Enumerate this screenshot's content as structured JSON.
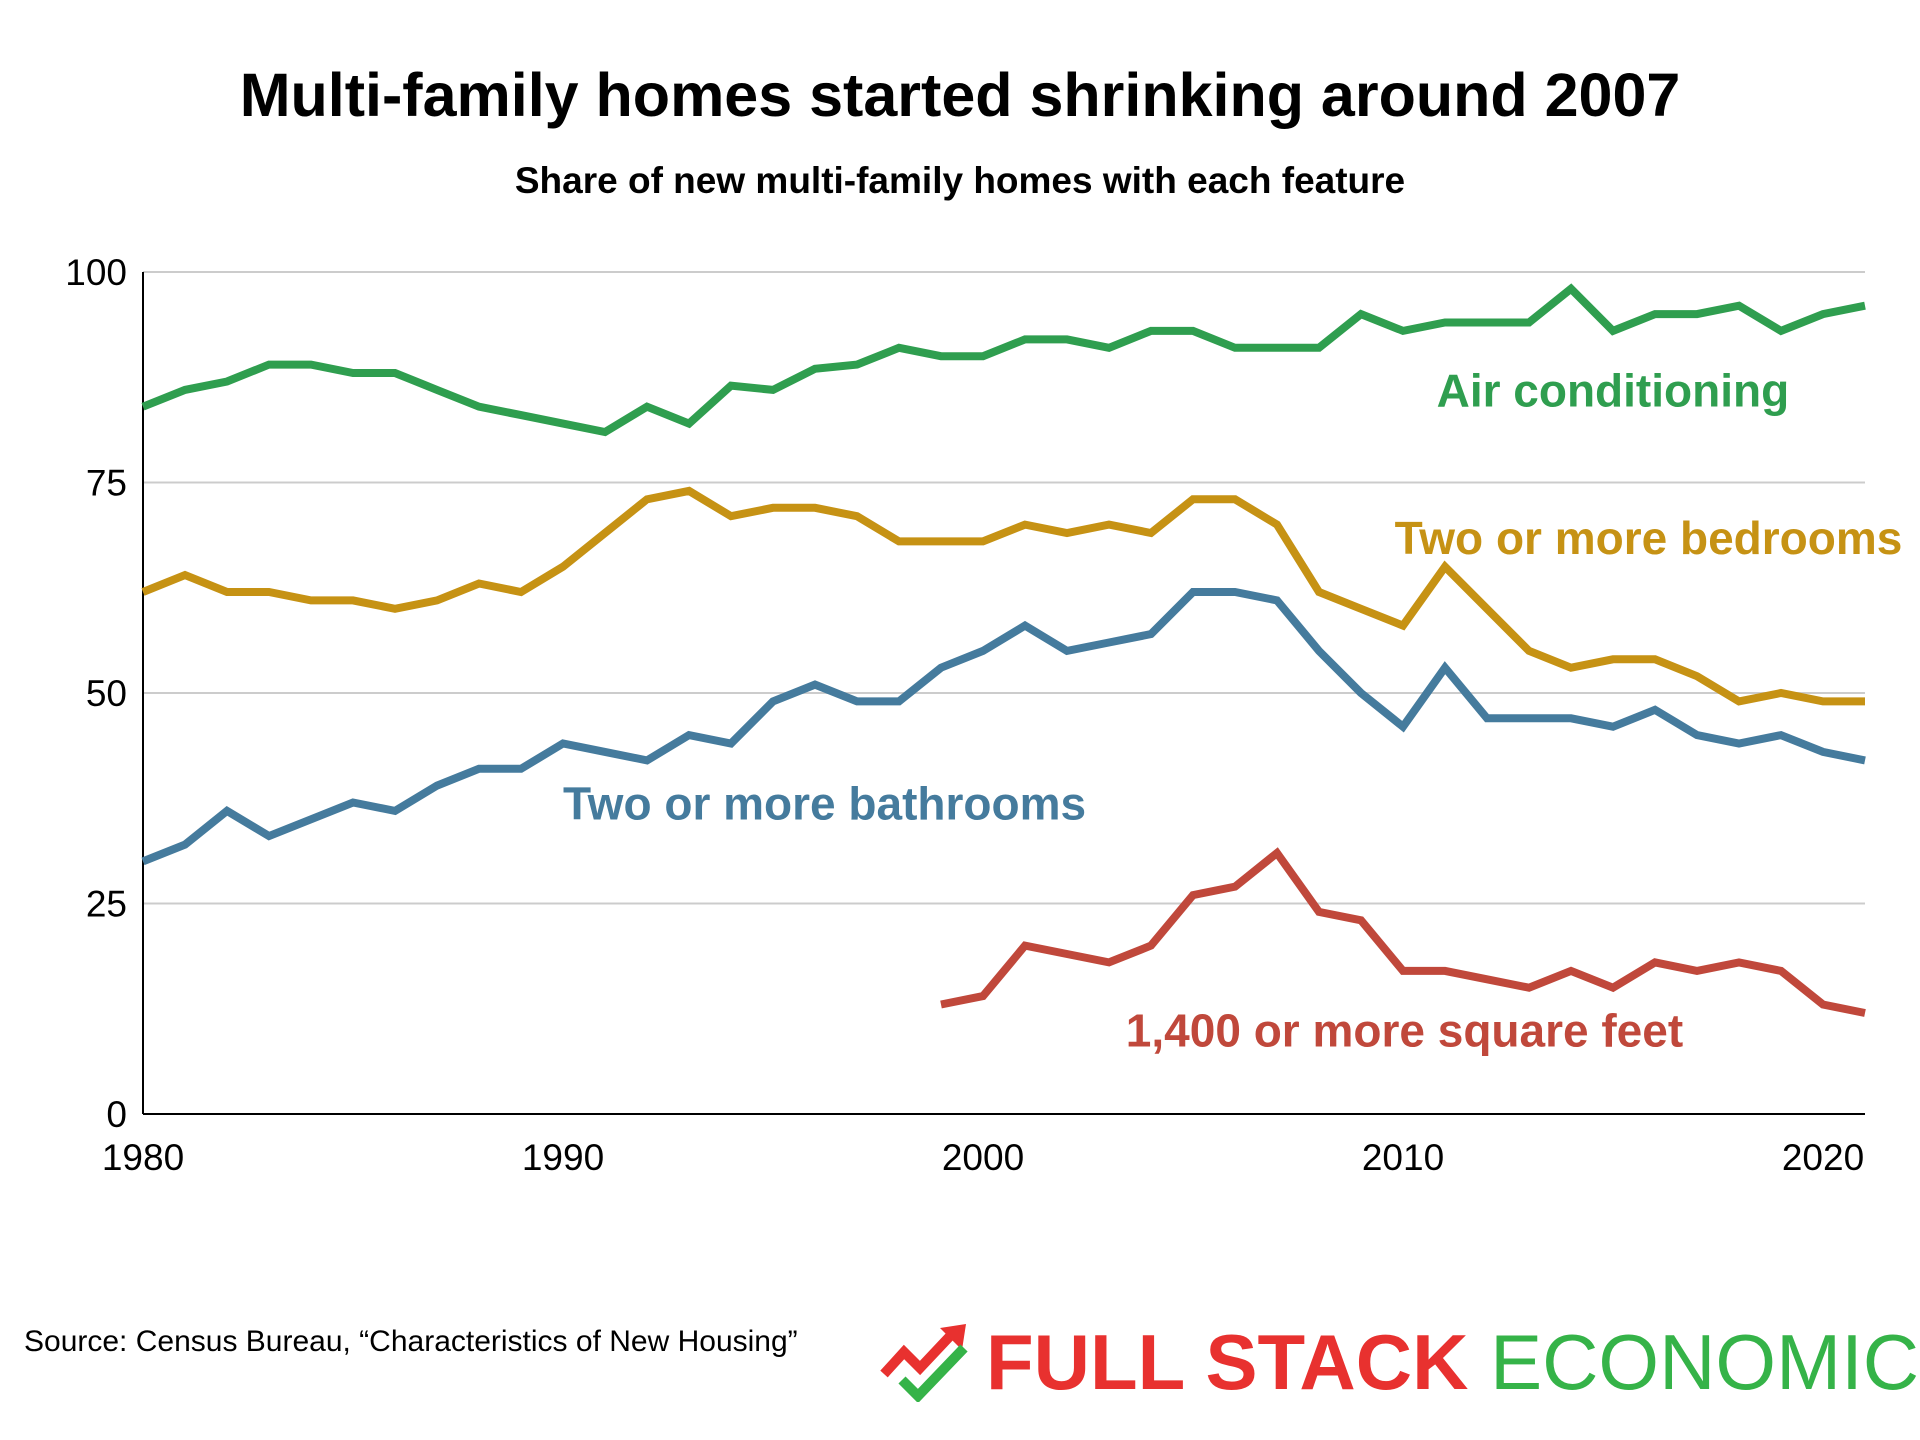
{
  "title": "Multi-family homes started shrinking around 2007",
  "subtitle": "Share of new multi-family homes with each feature",
  "source": "Source: Census Bureau, “Characteristics of New Housing”",
  "logo": {
    "word1": "FULL STACK",
    "word2": "ECONOMICS",
    "color1": "#e8312f",
    "color2": "#35b348",
    "icon": "trend-arrow-check-icon"
  },
  "chart_data": {
    "type": "line",
    "xlim": [
      1980,
      2021
    ],
    "ylim": [
      0,
      100
    ],
    "xticks": [
      1980,
      1990,
      2000,
      2010,
      2020
    ],
    "yticks": [
      0,
      25,
      50,
      75,
      100
    ],
    "grid": "horizontal",
    "legend": "inline labels",
    "series": [
      {
        "name": "Air conditioning",
        "color": "#2f9e4f",
        "x": [
          1980,
          1981,
          1982,
          1983,
          1984,
          1985,
          1986,
          1987,
          1988,
          1989,
          1990,
          1991,
          1992,
          1993,
          1994,
          1995,
          1996,
          1997,
          1998,
          1999,
          2000,
          2001,
          2002,
          2003,
          2004,
          2005,
          2006,
          2007,
          2008,
          2009,
          2010,
          2011,
          2012,
          2013,
          2014,
          2015,
          2016,
          2017,
          2018,
          2019,
          2020,
          2021
        ],
        "values": [
          84,
          86,
          87,
          89,
          89,
          88,
          88,
          86,
          84,
          83,
          82,
          81,
          84,
          82,
          86.5,
          86,
          88.5,
          89,
          91,
          90,
          90,
          92,
          92,
          91,
          93,
          93,
          91,
          91,
          91,
          95,
          93,
          94,
          94,
          94,
          98,
          93,
          95,
          95,
          96,
          93,
          95,
          96
        ]
      },
      {
        "name": "Two or more bedrooms",
        "color": "#c69214",
        "x": [
          1980,
          1981,
          1982,
          1983,
          1984,
          1985,
          1986,
          1987,
          1988,
          1989,
          1990,
          1991,
          1992,
          1993,
          1994,
          1995,
          1996,
          1997,
          1998,
          1999,
          2000,
          2001,
          2002,
          2003,
          2004,
          2005,
          2006,
          2007,
          2008,
          2009,
          2010,
          2011,
          2012,
          2013,
          2014,
          2015,
          2016,
          2017,
          2018,
          2019,
          2020,
          2021
        ],
        "values": [
          62,
          64,
          62,
          62,
          61,
          61,
          60,
          61,
          63,
          62,
          65,
          69,
          73,
          74,
          71,
          72,
          72,
          71,
          68,
          68,
          68,
          70,
          69,
          70,
          69,
          73,
          73,
          70,
          62,
          60,
          58,
          65,
          60,
          55,
          53,
          54,
          54,
          52,
          49,
          50,
          49,
          49
        ]
      },
      {
        "name": "Two or more bathrooms",
        "color": "#457b9d",
        "x": [
          1980,
          1981,
          1982,
          1983,
          1984,
          1985,
          1986,
          1987,
          1988,
          1989,
          1990,
          1991,
          1992,
          1993,
          1994,
          1995,
          1996,
          1997,
          1998,
          1999,
          2000,
          2001,
          2002,
          2003,
          2004,
          2005,
          2006,
          2007,
          2008,
          2009,
          2010,
          2011,
          2012,
          2013,
          2014,
          2015,
          2016,
          2017,
          2018,
          2019,
          2020,
          2021
        ],
        "values": [
          30,
          32,
          36,
          33,
          35,
          37,
          36,
          39,
          41,
          41,
          44,
          43,
          42,
          45,
          44,
          49,
          51,
          49,
          49,
          53,
          55,
          58,
          55,
          56,
          57,
          62,
          62,
          61,
          55,
          50,
          46,
          53,
          47,
          47,
          47,
          46,
          48,
          45,
          44,
          45,
          43,
          42
        ]
      },
      {
        "name": "1,400 or more square feet",
        "color": "#c0483b",
        "x": [
          1999,
          2000,
          2001,
          2002,
          2003,
          2004,
          2005,
          2006,
          2007,
          2008,
          2009,
          2010,
          2011,
          2012,
          2013,
          2014,
          2015,
          2016,
          2017,
          2018,
          2019,
          2020,
          2021
        ],
        "values": [
          13,
          14,
          20,
          19,
          18,
          20,
          26,
          27,
          31,
          24,
          23,
          17,
          17,
          16,
          15,
          17,
          15,
          18,
          17,
          18,
          17,
          13,
          12
        ]
      }
    ]
  }
}
